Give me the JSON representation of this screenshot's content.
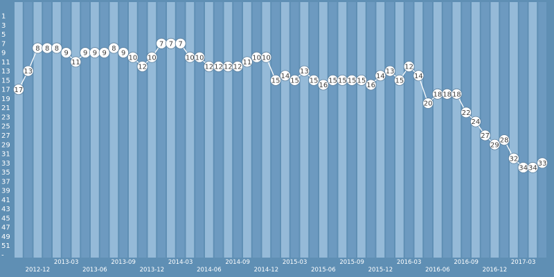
{
  "chart_data": {
    "type": "line",
    "title": "",
    "xlabel": "",
    "ylabel": "",
    "y_inverted": true,
    "ylim": [
      1,
      53
    ],
    "y_ticks": [
      1,
      3,
      5,
      7,
      9,
      11,
      13,
      15,
      17,
      19,
      21,
      23,
      25,
      27,
      29,
      31,
      33,
      35,
      37,
      39,
      41,
      43,
      45,
      47,
      49,
      51
    ],
    "y_extra_tick": "-",
    "x_tick_labels": [
      "2012-12",
      "2013-03",
      "2013-06",
      "2013-09",
      "2013-12",
      "2014-03",
      "2014-06",
      "2014-09",
      "2014-12",
      "2015-03",
      "2015-06",
      "2015-09",
      "2015-12",
      "2016-03",
      "2016-06",
      "2016-09",
      "2016-12",
      "2017-03"
    ],
    "x": [
      "2012-10",
      "2012-11",
      "2012-12",
      "2013-01",
      "2013-02",
      "2013-03",
      "2013-04",
      "2013-05",
      "2013-06",
      "2013-07",
      "2013-08",
      "2013-09",
      "2013-10",
      "2013-11",
      "2013-12",
      "2014-01",
      "2014-02",
      "2014-03",
      "2014-04",
      "2014-05",
      "2014-06",
      "2014-07",
      "2014-08",
      "2014-09",
      "2014-10",
      "2014-11",
      "2014-12",
      "2015-01",
      "2015-02",
      "2015-03",
      "2015-04",
      "2015-05",
      "2015-06",
      "2015-07",
      "2015-08",
      "2015-09",
      "2015-10",
      "2015-11",
      "2015-12",
      "2016-01",
      "2016-02",
      "2016-03",
      "2016-04",
      "2016-05",
      "2016-06",
      "2016-07",
      "2016-08",
      "2016-09",
      "2016-10",
      "2016-11",
      "2016-12",
      "2017-01",
      "2017-02",
      "2017-03",
      "2017-04",
      "2017-05"
    ],
    "series": [
      {
        "values": [
          17,
          13,
          8,
          8,
          8,
          9,
          11,
          9,
          9,
          9,
          8,
          9,
          10,
          12,
          10,
          7,
          7,
          7,
          10,
          10,
          12,
          12,
          12,
          12,
          11,
          10,
          10,
          15,
          14,
          15,
          13,
          15,
          16,
          15,
          15,
          15,
          15,
          16,
          14,
          13,
          15,
          12,
          14,
          20,
          18,
          18,
          18,
          22,
          24,
          27,
          29,
          28,
          32,
          34,
          34,
          33
        ]
      }
    ],
    "grid": true,
    "legend": "none",
    "colors": {
      "background": "#5f8fb4",
      "band_light": "#95bad8",
      "band_dark": "#6d9ac0",
      "line": "#ffffff",
      "marker_fill": "#ffffff",
      "marker_stroke": "#5a7d9a",
      "label_text": "#3c3c3c",
      "axis_text": "#ffffff"
    }
  }
}
